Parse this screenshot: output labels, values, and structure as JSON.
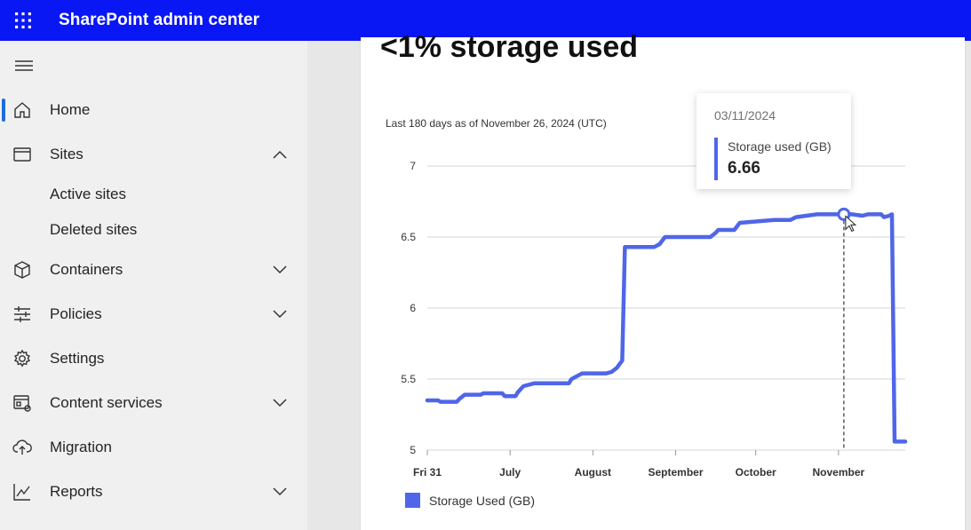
{
  "app": {
    "title": "SharePoint admin center"
  },
  "nav": {
    "items": [
      {
        "label": "Home",
        "icon": "home-icon",
        "selected": true
      },
      {
        "label": "Sites",
        "icon": "sites-icon",
        "expanded": true,
        "children": [
          {
            "label": "Active sites"
          },
          {
            "label": "Deleted sites"
          }
        ]
      },
      {
        "label": "Containers",
        "icon": "cube-icon"
      },
      {
        "label": "Policies",
        "icon": "sliders-icon"
      },
      {
        "label": "Settings",
        "icon": "gear-icon"
      },
      {
        "label": "Content services",
        "icon": "content-services-icon"
      },
      {
        "label": "Migration",
        "icon": "cloud-upload-icon"
      },
      {
        "label": "Reports",
        "icon": "chart-line-icon"
      }
    ]
  },
  "card": {
    "title": "<1% storage used",
    "subtitle": "Last 180 days as of November 26, 2024 (UTC)"
  },
  "tooltip": {
    "date": "03/11/2024",
    "label": "Storage used (GB)",
    "value": "6.66"
  },
  "colors": {
    "accent": "#4f66e8",
    "topbar": "#0a17f5"
  },
  "chart_data": {
    "type": "line",
    "title": "",
    "xlabel": "",
    "ylabel": "",
    "x_tick_labels": [
      "Fri 31",
      "July",
      "August",
      "September",
      "October",
      "November"
    ],
    "y_tick_labels": [
      "5",
      "5.5",
      "6",
      "6.5",
      "7"
    ],
    "ylim": [
      5,
      7
    ],
    "grid": true,
    "legend_position": "bottom-left",
    "series": [
      {
        "name": "Storage Used (GB)",
        "color": "#4f66e8",
        "points": [
          [
            "2024-05-31",
            5.35
          ],
          [
            "2024-06-04",
            5.35
          ],
          [
            "2024-06-05",
            5.34
          ],
          [
            "2024-06-11",
            5.34
          ],
          [
            "2024-06-12",
            5.36
          ],
          [
            "2024-06-14",
            5.39
          ],
          [
            "2024-06-20",
            5.39
          ],
          [
            "2024-06-21",
            5.4
          ],
          [
            "2024-06-28",
            5.4
          ],
          [
            "2024-06-29",
            5.38
          ],
          [
            "2024-07-03",
            5.38
          ],
          [
            "2024-07-04",
            5.41
          ],
          [
            "2024-07-06",
            5.45
          ],
          [
            "2024-07-10",
            5.47
          ],
          [
            "2024-07-23",
            5.47
          ],
          [
            "2024-07-24",
            5.5
          ],
          [
            "2024-07-27",
            5.53
          ],
          [
            "2024-07-28",
            5.54
          ],
          [
            "2024-08-06",
            5.54
          ],
          [
            "2024-08-08",
            5.55
          ],
          [
            "2024-08-10",
            5.58
          ],
          [
            "2024-08-12",
            5.63
          ],
          [
            "2024-08-13",
            6.43
          ],
          [
            "2024-08-24",
            6.43
          ],
          [
            "2024-08-26",
            6.45
          ],
          [
            "2024-08-28",
            6.5
          ],
          [
            "2024-09-14",
            6.5
          ],
          [
            "2024-09-16",
            6.53
          ],
          [
            "2024-09-17",
            6.55
          ],
          [
            "2024-09-23",
            6.55
          ],
          [
            "2024-09-25",
            6.6
          ],
          [
            "2024-10-08",
            6.62
          ],
          [
            "2024-10-14",
            6.62
          ],
          [
            "2024-10-16",
            6.64
          ],
          [
            "2024-10-20",
            6.65
          ],
          [
            "2024-10-24",
            6.66
          ],
          [
            "2024-11-03",
            6.66
          ],
          [
            "2024-11-06",
            6.66
          ],
          [
            "2024-11-10",
            6.65
          ],
          [
            "2024-11-12",
            6.66
          ],
          [
            "2024-11-17",
            6.66
          ],
          [
            "2024-11-18",
            6.64
          ],
          [
            "2024-11-20",
            6.65
          ],
          [
            "2024-11-21",
            6.66
          ],
          [
            "2024-11-22",
            5.06
          ],
          [
            "2024-11-26",
            5.06
          ]
        ]
      }
    ],
    "highlight": {
      "date": "2024-11-03",
      "value": 6.66
    }
  }
}
